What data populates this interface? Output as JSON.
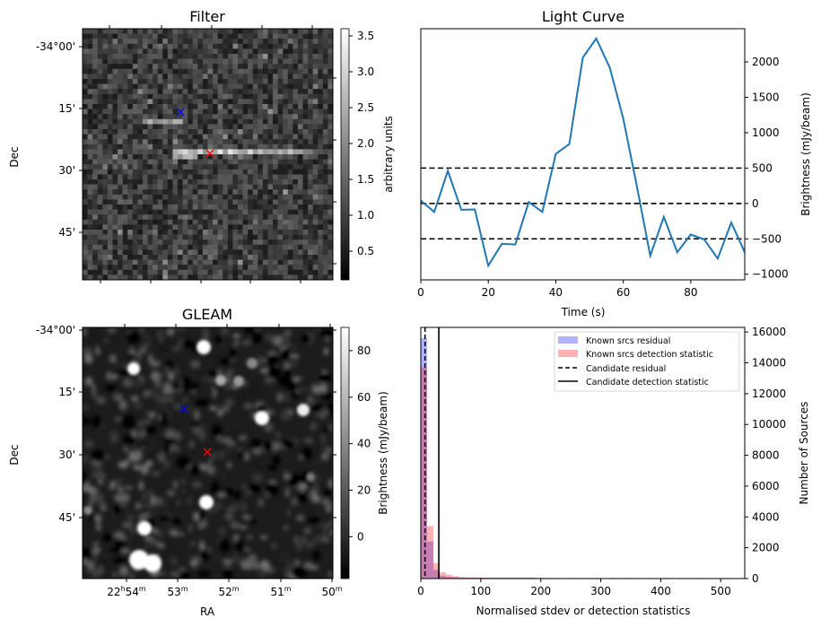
{
  "chart_data": [
    {
      "type": "heatmap",
      "title": "Filter",
      "xlabel": "",
      "ylabel": "Dec",
      "yticks": [
        "-34°00'",
        "15'",
        "30'",
        "45'"
      ],
      "colormap": "gray",
      "colorbar": {
        "label": "arbitrary units",
        "range": [
          0.1,
          3.6
        ],
        "ticks": [
          "0.5",
          "1.0",
          "1.5",
          "2.0",
          "2.5",
          "3.0",
          "3.5"
        ],
        "tick_values": [
          0.5,
          1.0,
          1.5,
          2.0,
          2.5,
          3.0,
          3.5
        ]
      },
      "markers": [
        {
          "name": "known-source",
          "symbol": "x",
          "color": "#0000ff",
          "dec_arcmin": 17
        },
        {
          "name": "candidate",
          "symbol": "x",
          "color": "#ff0000",
          "dec_arcmin": 26
        }
      ],
      "features": [
        "noise texture",
        "bright horizontal streak through candidate position",
        "fainter streak left of blue marker"
      ]
    },
    {
      "type": "line",
      "title": "Light Curve",
      "xlabel": "Time (s)",
      "ylabel": "Brightness (mJy/beam)",
      "xlim": [
        0,
        96
      ],
      "ylim": [
        -1080,
        2470
      ],
      "xticks": [
        0,
        20,
        40,
        60,
        80
      ],
      "yticks": [
        -1000,
        -500,
        0,
        500,
        1000,
        1500,
        2000
      ],
      "ytick_labels": [
        "−1000",
        "−500",
        "0",
        "500",
        "1000",
        "1500",
        "2000"
      ],
      "y_axis_side": "right",
      "series": [
        {
          "name": "light-curve",
          "color": "#1f77b4",
          "x": [
            0,
            4,
            8,
            12,
            16,
            20,
            24,
            28,
            32,
            36,
            40,
            44,
            48,
            52,
            56,
            60,
            64,
            68,
            72,
            76,
            80,
            84,
            88,
            92,
            96
          ],
          "y": [
            40,
            -120,
            460,
            -90,
            -85,
            -880,
            -570,
            -580,
            20,
            -120,
            700,
            840,
            2060,
            2330,
            1920,
            1200,
            250,
            -740,
            -190,
            -690,
            -440,
            -510,
            -780,
            -270,
            -690
          ]
        }
      ],
      "hlines": [
        {
          "y": 500,
          "style": "dashed",
          "color": "#000000"
        },
        {
          "y": 0,
          "style": "dashed",
          "color": "#000000"
        },
        {
          "y": -500,
          "style": "dashed",
          "color": "#000000"
        }
      ]
    },
    {
      "type": "heatmap",
      "title": "GLEAM",
      "xlabel": "RA",
      "ylabel": "Dec",
      "xticks": [
        "22h54m",
        "53m",
        "52m",
        "51m",
        "50m"
      ],
      "xtick_parts": [
        {
          "main": "22",
          "sup1": "h",
          "main2": "54",
          "sup2": "m"
        },
        {
          "main": "53",
          "sup1": "m"
        },
        {
          "main": "52",
          "sup1": "m"
        },
        {
          "main": "51",
          "sup1": "m"
        },
        {
          "main": "50",
          "sup1": "m"
        }
      ],
      "yticks": [
        "-34°00'",
        "15'",
        "30'",
        "45'"
      ],
      "colormap": "gray",
      "colorbar": {
        "label": "Brightness (mJy/beam)",
        "range": [
          -18,
          90
        ],
        "ticks": [
          "0",
          "20",
          "40",
          "60",
          "80"
        ],
        "tick_values": [
          0,
          20,
          40,
          60,
          80
        ]
      },
      "markers": [
        {
          "name": "known-source",
          "symbol": "x",
          "color": "#0000ff"
        },
        {
          "name": "candidate",
          "symbol": "x",
          "color": "#ff0000"
        }
      ],
      "features": [
        "scattered point sources",
        "extended double source lower-left"
      ]
    },
    {
      "type": "bar",
      "title": "",
      "xlabel": "Normalised stdev or detection statistics",
      "ylabel": "Number of Sources",
      "xlim": [
        0,
        540
      ],
      "ylim": [
        0,
        16300
      ],
      "xticks": [
        0,
        100,
        200,
        300,
        400,
        500
      ],
      "yticks": [
        0,
        2000,
        4000,
        6000,
        8000,
        10000,
        12000,
        14000,
        16000
      ],
      "y_axis_side": "right",
      "bin_width": 10.5,
      "series": [
        {
          "name": "Known srcs residual",
          "color": "#0000ff",
          "alpha": 0.3,
          "bin_starts": [
            0,
            10.5,
            21,
            31.5,
            42,
            52.5,
            63,
            73.5,
            84,
            94.5,
            105,
            115.5,
            126,
            136.5,
            147,
            157.5,
            168,
            178.5,
            273,
            315,
            399
          ],
          "counts": [
            15600,
            2400,
            550,
            180,
            110,
            80,
            70,
            60,
            60,
            60,
            60,
            60,
            60,
            60,
            60,
            60,
            60,
            60,
            40,
            40,
            40
          ]
        },
        {
          "name": "Known srcs detection statistic",
          "color": "#ff0000",
          "alpha": 0.3,
          "bin_starts": [
            0,
            10.5,
            21,
            31.5,
            42,
            52.5,
            63,
            73.5,
            84,
            94.5,
            105,
            115.5,
            126,
            136.5,
            147,
            157.5,
            168,
            178.5,
            189,
            199.5,
            210,
            220.5,
            241.5,
            252,
            262.5,
            283.5,
            294,
            336,
            346.5,
            409.5,
            430.5,
            451.5,
            462,
            504
          ],
          "counts": [
            13700,
            3400,
            1000,
            400,
            250,
            160,
            100,
            80,
            70,
            60,
            60,
            50,
            50,
            50,
            50,
            50,
            50,
            50,
            50,
            50,
            40,
            40,
            40,
            40,
            40,
            40,
            40,
            40,
            40,
            40,
            40,
            40,
            40,
            40
          ]
        }
      ],
      "vlines": [
        {
          "name": "Candidate residual",
          "x": 7,
          "style": "dashed",
          "color": "#000000"
        },
        {
          "name": "Candidate detection statistic",
          "x": 30,
          "style": "solid",
          "color": "#000000"
        }
      ],
      "legend": {
        "placement": "top-right",
        "entries": [
          "Known srcs residual",
          "Known srcs detection statistic",
          "Candidate residual",
          "Candidate detection statistic"
        ]
      }
    }
  ]
}
